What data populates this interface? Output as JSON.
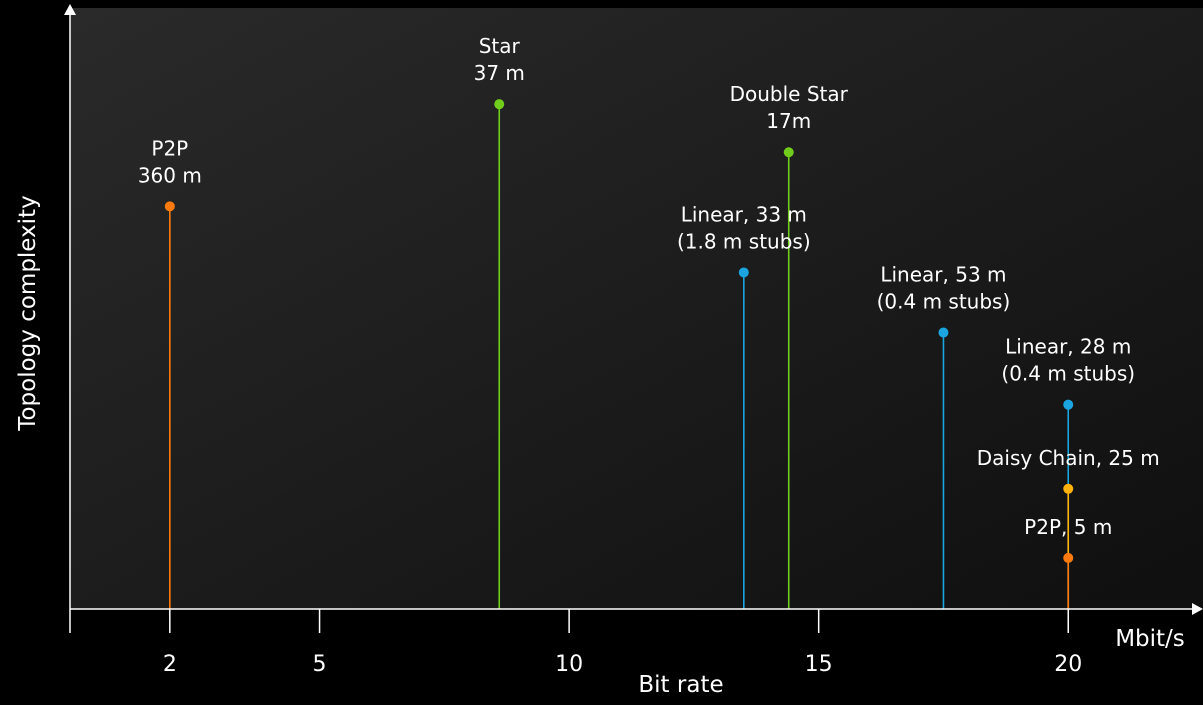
{
  "chart_data": {
    "type": "stem",
    "xlabel": "Bit rate",
    "ylabel": "Topology complexity",
    "x_unit": "Mbit/s",
    "x_ticks": [
      2,
      5,
      10,
      15,
      20
    ],
    "xlim": [
      0,
      22.7
    ],
    "ylim": [
      0,
      10
    ],
    "grid": false,
    "colors": {
      "orange": "#ff7a0e",
      "green": "#71cd1c",
      "blue": "#1aa5e0",
      "yellow": "#ffb20a"
    },
    "points": [
      {
        "x": 2,
        "y": 6.7,
        "label": [
          "P2P",
          "360 m"
        ],
        "color": "orange"
      },
      {
        "x": 8.6,
        "y": 8.4,
        "label": [
          "Star",
          "37 m"
        ],
        "color": "green"
      },
      {
        "x": 14.4,
        "y": 7.6,
        "label": [
          "Double Star",
          "17m"
        ],
        "color": "green"
      },
      {
        "x": 13.5,
        "y": 5.6,
        "label": [
          "Linear, 33 m",
          "(1.8 m stubs)"
        ],
        "color": "blue"
      },
      {
        "x": 17.5,
        "y": 4.6,
        "label": [
          "Linear, 53 m",
          "(0.4 m stubs)"
        ],
        "color": "blue"
      },
      {
        "x": 20,
        "y": 3.4,
        "label": [
          "Linear, 28 m",
          "(0.4 m stubs)"
        ],
        "color": "blue"
      },
      {
        "x": 20,
        "y": 2.0,
        "label": [
          "Daisy Chain, 25 m"
        ],
        "color": "yellow"
      },
      {
        "x": 20,
        "y": 0.85,
        "label": [
          "P2P, 5 m"
        ],
        "color": "orange"
      }
    ]
  }
}
